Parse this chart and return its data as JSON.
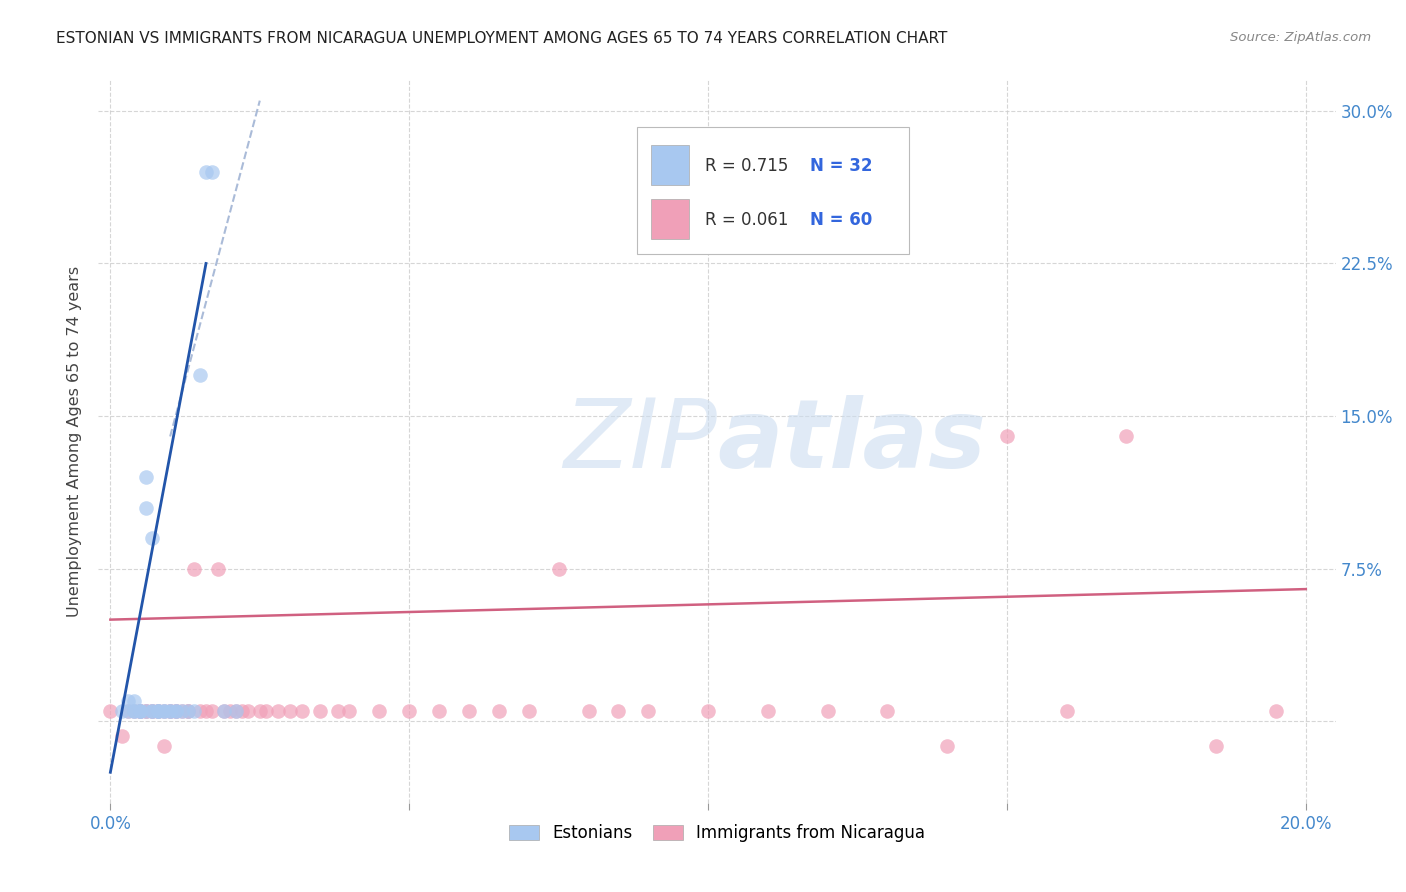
{
  "title": "ESTONIAN VS IMMIGRANTS FROM NICARAGUA UNEMPLOYMENT AMONG AGES 65 TO 74 YEARS CORRELATION CHART",
  "source": "Source: ZipAtlas.com",
  "ylabel": "Unemployment Among Ages 65 to 74 years",
  "xlim": [
    -0.002,
    0.205
  ],
  "ylim": [
    -0.04,
    0.315
  ],
  "ytick_positions": [
    0.0,
    0.075,
    0.15,
    0.225,
    0.3
  ],
  "ytick_labels": [
    "",
    "7.5%",
    "15.0%",
    "22.5%",
    "30.0%"
  ],
  "xtick_positions": [
    0.0,
    0.05,
    0.1,
    0.15,
    0.2
  ],
  "xtick_labels": [
    "0.0%",
    "",
    "",
    "",
    "20.0%"
  ],
  "color_estonian": "#a8c8f0",
  "color_nicaragua": "#f0a0b8",
  "color_line_estonian": "#2255aa",
  "color_line_nicaragua": "#d06080",
  "color_dashed": "#aabbd8",
  "color_tick_labels": "#4488cc",
  "watermark_color": "#ccddf0",
  "legend_R1": "R = 0.715",
  "legend_N1": "N = 32",
  "legend_R2": "R = 0.061",
  "legend_N2": "N = 60",
  "estonian_x": [
    0.002,
    0.003,
    0.003,
    0.004,
    0.004,
    0.004,
    0.005,
    0.005,
    0.005,
    0.006,
    0.006,
    0.006,
    0.007,
    0.007,
    0.007,
    0.008,
    0.008,
    0.008,
    0.009,
    0.009,
    0.01,
    0.01,
    0.011,
    0.011,
    0.012,
    0.013,
    0.014,
    0.015,
    0.016,
    0.017,
    0.019,
    0.021
  ],
  "estonian_y": [
    0.005,
    0.005,
    0.01,
    0.005,
    0.005,
    0.01,
    0.005,
    0.005,
    0.005,
    0.005,
    0.12,
    0.105,
    0.005,
    0.09,
    0.005,
    0.005,
    0.005,
    0.005,
    0.005,
    0.005,
    0.005,
    0.005,
    0.005,
    0.005,
    0.005,
    0.005,
    0.005,
    0.17,
    0.27,
    0.27,
    0.005,
    0.005
  ],
  "nicaragua_x": [
    0.0,
    0.002,
    0.003,
    0.004,
    0.005,
    0.005,
    0.005,
    0.006,
    0.006,
    0.007,
    0.007,
    0.008,
    0.008,
    0.009,
    0.009,
    0.01,
    0.01,
    0.011,
    0.011,
    0.012,
    0.013,
    0.013,
    0.014,
    0.015,
    0.016,
    0.017,
    0.018,
    0.019,
    0.02,
    0.021,
    0.022,
    0.023,
    0.025,
    0.026,
    0.028,
    0.03,
    0.032,
    0.035,
    0.038,
    0.04,
    0.045,
    0.05,
    0.055,
    0.06,
    0.065,
    0.07,
    0.075,
    0.08,
    0.085,
    0.09,
    0.1,
    0.11,
    0.12,
    0.13,
    0.14,
    0.15,
    0.16,
    0.17,
    0.185,
    0.195
  ],
  "nicaragua_y": [
    0.005,
    -0.007,
    0.005,
    0.005,
    0.005,
    0.005,
    0.005,
    0.005,
    0.005,
    0.005,
    0.005,
    0.005,
    0.005,
    0.005,
    -0.012,
    0.005,
    0.005,
    0.005,
    0.005,
    0.005,
    0.005,
    0.005,
    0.075,
    0.005,
    0.005,
    0.005,
    0.075,
    0.005,
    0.005,
    0.005,
    0.005,
    0.005,
    0.005,
    0.005,
    0.005,
    0.005,
    0.005,
    0.005,
    0.005,
    0.005,
    0.005,
    0.005,
    0.005,
    0.005,
    0.005,
    0.005,
    0.075,
    0.005,
    0.005,
    0.005,
    0.005,
    0.005,
    0.005,
    0.005,
    -0.012,
    0.14,
    0.005,
    0.14,
    -0.012,
    0.005
  ],
  "est_line_x0": 0.0,
  "est_line_y0": -0.025,
  "est_line_x1": 0.016,
  "est_line_y1": 0.225,
  "dash_line_x0": 0.01,
  "dash_line_y0": 0.14,
  "dash_line_x1": 0.025,
  "dash_line_y1": 0.305,
  "nic_line_x0": 0.0,
  "nic_line_y0": 0.05,
  "nic_line_x1": 0.2,
  "nic_line_y1": 0.065
}
